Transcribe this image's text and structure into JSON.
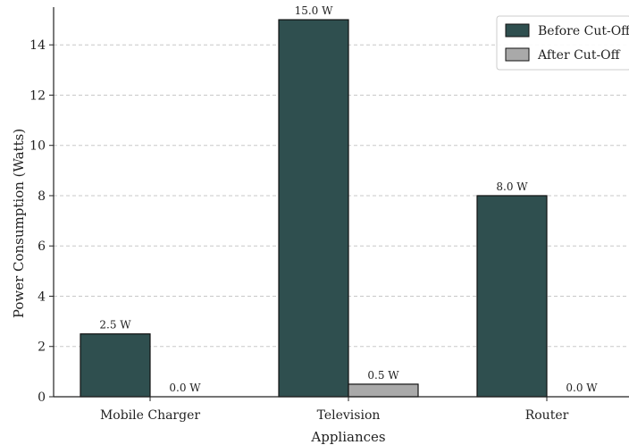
{
  "chart_data": {
    "type": "bar",
    "title": "",
    "xlabel": "Appliances",
    "ylabel": "Power Consumption (Watts)",
    "categories": [
      "Mobile Charger",
      "Television",
      "Router"
    ],
    "series": [
      {
        "name": "Before Cut-Off",
        "values": [
          2.5,
          15.0,
          8.0
        ],
        "labels": [
          "2.5 W",
          "15.0 W",
          "8.0 W"
        ],
        "color": "#2f4f4f"
      },
      {
        "name": "After Cut-Off",
        "values": [
          0.0,
          0.5,
          0.0
        ],
        "labels": [
          "0.0 W",
          "0.5 W",
          "0.0 W"
        ],
        "color": "#a9a9a9"
      }
    ],
    "ylim": [
      0,
      15.5
    ],
    "yticks": [
      0,
      2,
      4,
      6,
      8,
      10,
      12,
      14
    ],
    "grid": "y-dashed",
    "legend": "top-right"
  }
}
